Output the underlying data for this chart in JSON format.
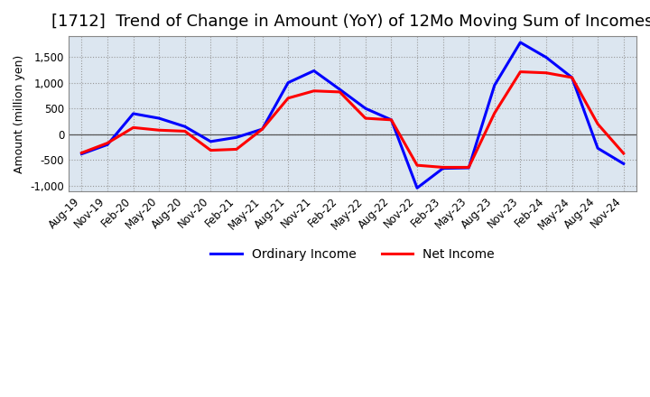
{
  "title": "[1712]  Trend of Change in Amount (YoY) of 12Mo Moving Sum of Incomes",
  "ylabel": "Amount (million yen)",
  "background_color": "#ffffff",
  "plot_bg_color": "#dce6f0",
  "grid_color": "#999999",
  "spine_color": "#888888",
  "x_labels": [
    "Aug-19",
    "Nov-19",
    "Feb-20",
    "May-20",
    "Aug-20",
    "Nov-20",
    "Feb-21",
    "May-21",
    "Aug-21",
    "Nov-21",
    "Feb-22",
    "May-22",
    "Aug-22",
    "Nov-22",
    "Feb-23",
    "May-23",
    "Aug-23",
    "Nov-23",
    "Feb-24",
    "May-24",
    "Aug-24",
    "Nov-24"
  ],
  "ordinary_income": [
    -380,
    -200,
    400,
    310,
    150,
    -140,
    -60,
    100,
    1000,
    1230,
    870,
    500,
    280,
    -1040,
    -660,
    -650,
    950,
    1780,
    1490,
    1100,
    -270,
    -570
  ],
  "net_income": [
    -360,
    -170,
    130,
    80,
    60,
    -310,
    -290,
    100,
    700,
    840,
    820,
    310,
    280,
    -600,
    -640,
    -640,
    410,
    1210,
    1190,
    1100,
    200,
    -370
  ],
  "ylim": [
    -1100,
    1900
  ],
  "yticks": [
    -1000,
    -500,
    0,
    500,
    1000,
    1500
  ],
  "ordinary_color": "#0000ff",
  "net_color": "#ff0000",
  "line_width": 2.2,
  "title_fontsize": 13,
  "tick_fontsize": 8.5,
  "ylabel_fontsize": 9,
  "legend_fontsize": 10
}
